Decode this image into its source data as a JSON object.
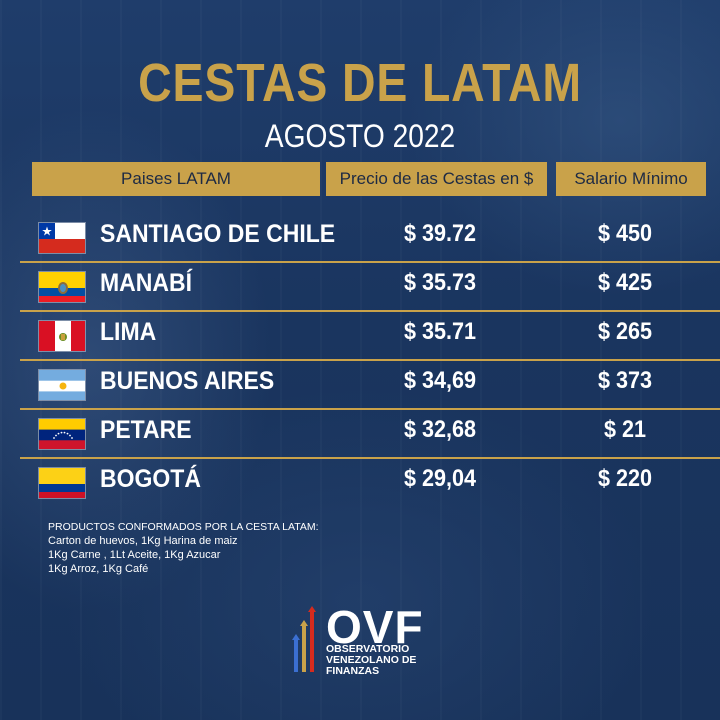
{
  "title": "CESTAS DE LATAM",
  "subtitle": "AGOSTO 2022",
  "table": {
    "headers": [
      "Paises LATAM",
      "Precio de las Cestas en $",
      "Salario Mínimo"
    ],
    "rows": [
      {
        "flag": "chile-flag",
        "city": "SANTIAGO DE CHILE",
        "price": "$ 39.72",
        "salary": "$ 450"
      },
      {
        "flag": "ecuador-flag",
        "city": "MANABÍ",
        "price": "$ 35.73",
        "salary": "$ 425"
      },
      {
        "flag": "peru-flag",
        "city": "LIMA",
        "price": "$ 35.71",
        "salary": "$ 265"
      },
      {
        "flag": "argentina-flag",
        "city": "BUENOS AIRES",
        "price": "$ 34,69",
        "salary": "$ 373"
      },
      {
        "flag": "venezuela-flag",
        "city": "PETARE",
        "price": "$ 32,68",
        "salary": "$ 21"
      },
      {
        "flag": "colombia-flag",
        "city": "BOGOTÁ",
        "price": "$ 29,04",
        "salary": "$ 220"
      }
    ]
  },
  "products": {
    "title": "PRODUCTOS CONFORMADOS POR LA CESTA LATAM:",
    "lines": [
      "Carton de huevos, 1Kg Harina de maiz",
      "1Kg Carne , 1Lt Aceite, 1Kg Azucar",
      "1Kg Arroz, 1Kg Café"
    ]
  },
  "logo": {
    "name": "OVF",
    "lines": [
      "OBSERVATORIO",
      "VENEZOLANO DE",
      "FINANZAS"
    ]
  },
  "colors": {
    "gold": "#c9a24a",
    "background": "#1d3a66",
    "text": "#ffffff"
  }
}
